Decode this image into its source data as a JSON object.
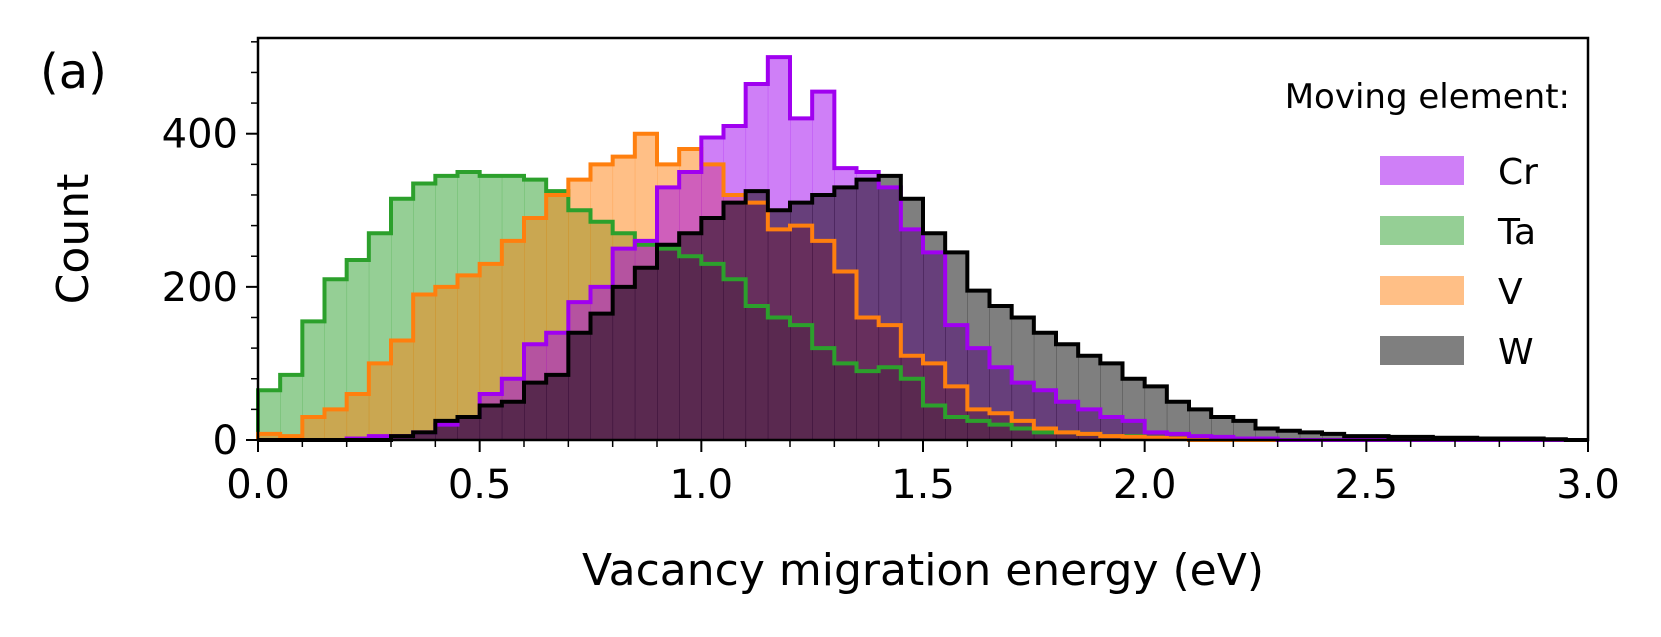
{
  "panel_label": "(a)",
  "colors": {
    "Cr": "#a000f0",
    "Ta": "#2ca02c",
    "V": "#ff7f0e",
    "W": "#000000"
  },
  "chart_data": {
    "type": "histogram",
    "xlabel": "Vacancy migration energy (eV)",
    "ylabel": "Count",
    "xlim": [
      0.0,
      3.0
    ],
    "ylim": [
      0,
      525
    ],
    "x_ticks": [
      "0.0",
      "0.5",
      "1.0",
      "1.5",
      "2.0",
      "2.5",
      "3.0"
    ],
    "y_ticks": [
      "0",
      "200",
      "400"
    ],
    "bin_width": 0.05,
    "grid": false,
    "legend": {
      "title": "Moving element:",
      "placement": "top-right",
      "labels": [
        "Cr",
        "Ta",
        "V",
        "W"
      ]
    },
    "series": [
      {
        "name": "Ta",
        "values": [
          65,
          85,
          155,
          210,
          235,
          270,
          315,
          335,
          345,
          350,
          345,
          345,
          340,
          325,
          300,
          285,
          270,
          255,
          250,
          240,
          230,
          210,
          175,
          160,
          150,
          120,
          100,
          90,
          95,
          80,
          45,
          30,
          25,
          20,
          15,
          10,
          10,
          8,
          5,
          5,
          3,
          2,
          1,
          1,
          0,
          0,
          0,
          0,
          0,
          0,
          0,
          0,
          0,
          0,
          0,
          0,
          0,
          0,
          0,
          0
        ]
      },
      {
        "name": "V",
        "values": [
          8,
          5,
          30,
          40,
          60,
          100,
          130,
          190,
          200,
          215,
          230,
          260,
          290,
          320,
          340,
          360,
          370,
          400,
          360,
          380,
          360,
          320,
          310,
          275,
          280,
          260,
          220,
          160,
          150,
          110,
          100,
          70,
          40,
          35,
          25,
          15,
          10,
          8,
          5,
          4,
          3,
          2,
          0,
          0,
          0,
          0,
          0,
          0,
          0,
          0,
          0,
          0,
          0,
          0,
          0,
          0,
          0,
          0,
          0,
          0
        ]
      },
      {
        "name": "Cr",
        "values": [
          0,
          0,
          0,
          0,
          2,
          5,
          5,
          10,
          20,
          30,
          60,
          80,
          125,
          140,
          180,
          200,
          250,
          260,
          330,
          350,
          395,
          410,
          465,
          500,
          420,
          455,
          355,
          350,
          330,
          275,
          245,
          150,
          120,
          95,
          75,
          65,
          50,
          40,
          30,
          25,
          10,
          8,
          5,
          4,
          2,
          2,
          0,
          0,
          0,
          0,
          0,
          0,
          0,
          0,
          0,
          0,
          0,
          0,
          0,
          0
        ]
      },
      {
        "name": "W",
        "values": [
          0,
          0,
          0,
          0,
          0,
          0,
          5,
          10,
          25,
          30,
          45,
          50,
          75,
          85,
          140,
          165,
          200,
          225,
          255,
          270,
          290,
          310,
          325,
          300,
          310,
          320,
          330,
          340,
          345,
          315,
          270,
          245,
          195,
          175,
          160,
          140,
          125,
          110,
          100,
          80,
          70,
          50,
          40,
          30,
          25,
          15,
          12,
          10,
          8,
          5,
          5,
          4,
          4,
          3,
          3,
          2,
          2,
          2,
          1,
          0
        ]
      }
    ]
  }
}
